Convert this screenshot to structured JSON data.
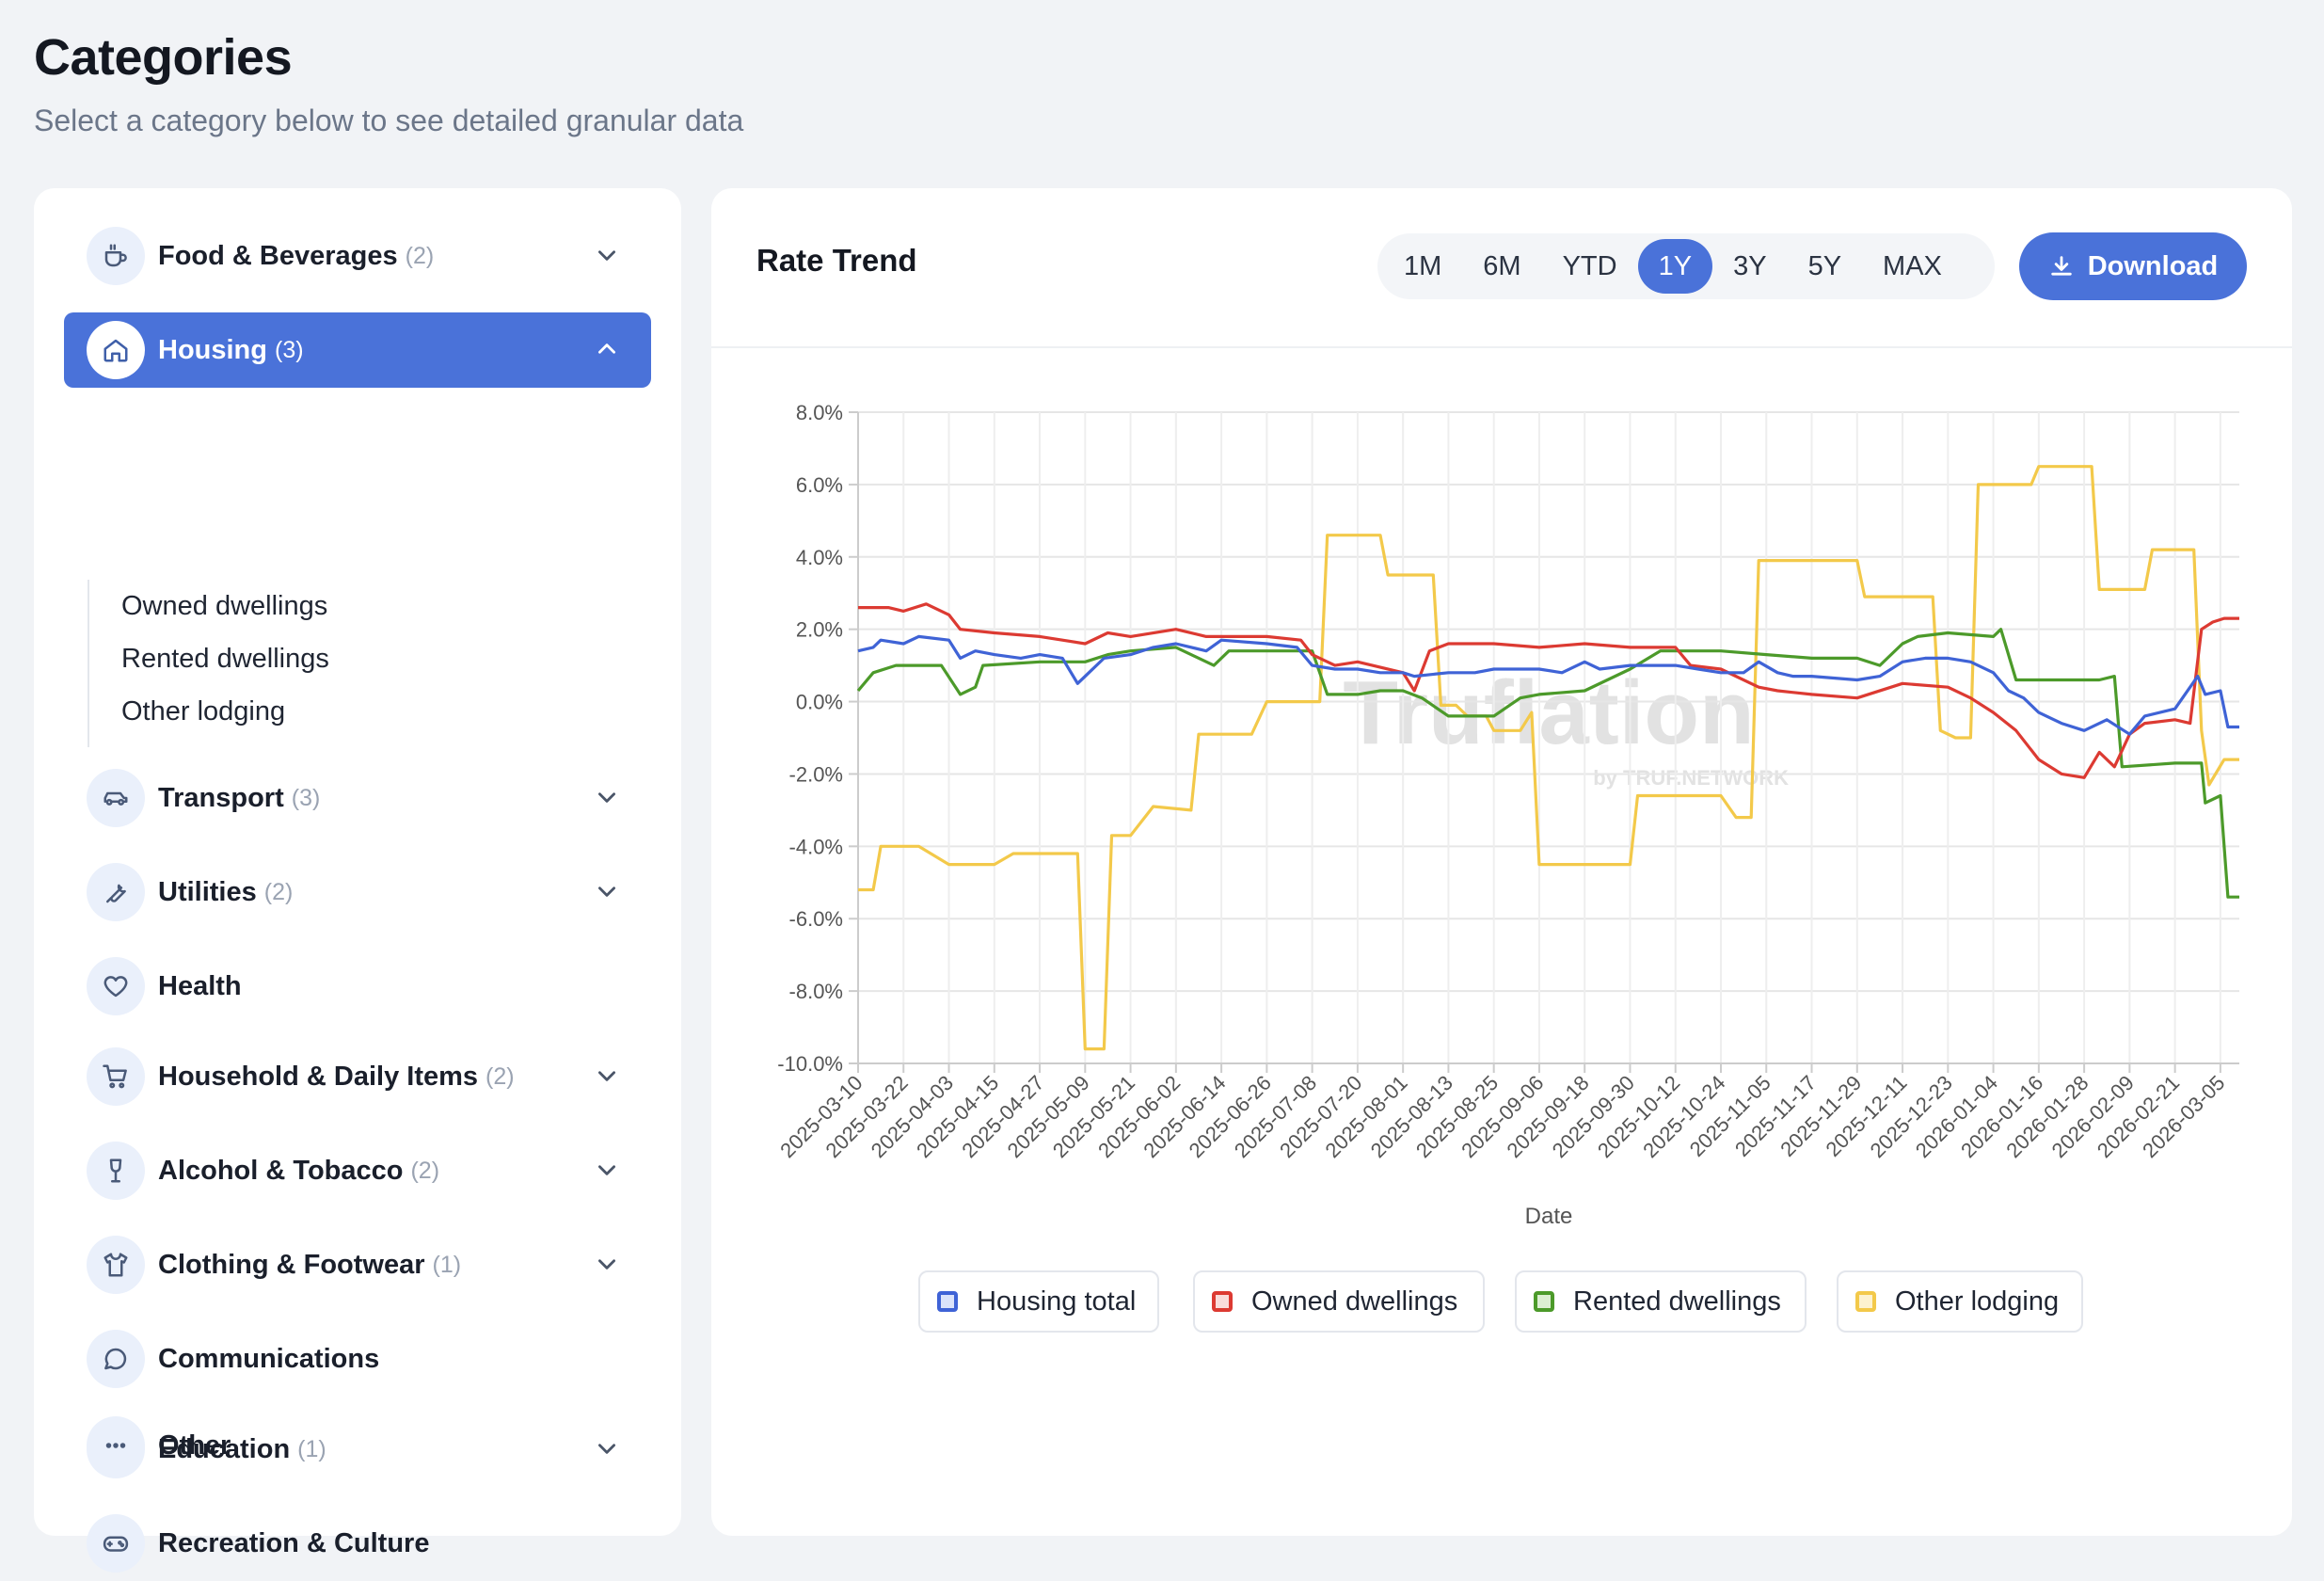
{
  "page": {
    "title": "Categories",
    "subtitle": "Select a category below to see detailed granular data"
  },
  "sidebar": {
    "categories": [
      {
        "name": "Food & Beverages",
        "count": "(2)",
        "icon": "cup-icon",
        "expanded": false
      },
      {
        "name": "Housing",
        "count": "(3)",
        "icon": "home-icon",
        "expanded": true
      },
      {
        "name": "Transport",
        "count": "(3)",
        "icon": "car-icon",
        "expanded": false
      },
      {
        "name": "Utilities",
        "count": "(2)",
        "icon": "wrench-icon",
        "expanded": false
      },
      {
        "name": "Health",
        "count": "",
        "icon": "heart-icon",
        "expanded": false
      },
      {
        "name": "Household & Daily Items",
        "count": "(2)",
        "icon": "cart-icon",
        "expanded": false
      },
      {
        "name": "Alcohol & Tobacco",
        "count": "(2)",
        "icon": "wine-icon",
        "expanded": false
      },
      {
        "name": "Clothing & Footwear",
        "count": "(1)",
        "icon": "shirt-icon",
        "expanded": false
      },
      {
        "name": "Communications",
        "count": "",
        "icon": "chat-icon",
        "expanded": false
      },
      {
        "name": "Education",
        "count": "(1)",
        "icon": "graduation-cap-icon",
        "expanded": false
      },
      {
        "name": "Recreation & Culture",
        "count": "",
        "icon": "gamepad-icon",
        "expanded": false
      },
      {
        "name": "Other",
        "count": "",
        "icon": "more-icon",
        "expanded": false
      }
    ],
    "housing_subcategories": [
      "Owned dwellings",
      "Rented dwellings",
      "Other lodging"
    ]
  },
  "panel": {
    "title": "Rate Trend",
    "ranges": [
      "1M",
      "6M",
      "YTD",
      "1Y",
      "3Y",
      "5Y",
      "MAX"
    ],
    "active_range": "1Y",
    "download_label": "Download"
  },
  "colors": {
    "accent": "#4a72d9",
    "housing_total": "#3f63d6",
    "owned": "#dc3a32",
    "rented": "#4c9a2a",
    "other_lodging": "#f3c94a"
  },
  "chart_data": {
    "type": "line",
    "xlabel": "Date",
    "ylabel": "",
    "ylim": [
      -10,
      8
    ],
    "yticks": [
      "8.0%",
      "6.0%",
      "4.0%",
      "2.0%",
      "0.0%",
      "-2.0%",
      "-4.0%",
      "-6.0%",
      "-8.0%",
      "-10.0%"
    ],
    "grid": true,
    "legend_position": "bottom",
    "watermark": "Truflation by TRUF.NETWORK",
    "x_start": "2025-03-10",
    "x_end": "2026-03-10",
    "x_ticks": [
      "2025-03-10",
      "2025-03-22",
      "2025-04-03",
      "2025-04-15",
      "2025-04-27",
      "2025-05-09",
      "2025-05-21",
      "2025-06-02",
      "2025-06-14",
      "2025-06-26",
      "2025-07-08",
      "2025-07-20",
      "2025-08-01",
      "2025-08-13",
      "2025-08-25",
      "2025-09-06",
      "2025-09-18",
      "2025-09-30",
      "2025-10-12",
      "2025-10-24",
      "2025-11-05",
      "2025-11-17",
      "2025-11-29",
      "2025-12-11",
      "2025-12-23",
      "2026-01-04",
      "2026-01-16",
      "2026-01-28",
      "2026-02-09",
      "2026-02-21",
      "2026-03-05"
    ],
    "series": [
      {
        "name": "Housing total",
        "points": [
          [
            "2025-03-10",
            1.4
          ],
          [
            "2025-03-14",
            1.5
          ],
          [
            "2025-03-16",
            1.7
          ],
          [
            "2025-03-22",
            1.6
          ],
          [
            "2025-03-26",
            1.8
          ],
          [
            "2025-04-03",
            1.7
          ],
          [
            "2025-04-06",
            1.2
          ],
          [
            "2025-04-10",
            1.4
          ],
          [
            "2025-04-15",
            1.3
          ],
          [
            "2025-04-22",
            1.2
          ],
          [
            "2025-04-27",
            1.3
          ],
          [
            "2025-05-03",
            1.2
          ],
          [
            "2025-05-07",
            0.5
          ],
          [
            "2025-05-10",
            0.8
          ],
          [
            "2025-05-14",
            1.2
          ],
          [
            "2025-05-21",
            1.3
          ],
          [
            "2025-05-27",
            1.5
          ],
          [
            "2025-06-02",
            1.6
          ],
          [
            "2025-06-10",
            1.4
          ],
          [
            "2025-06-14",
            1.7
          ],
          [
            "2025-06-26",
            1.6
          ],
          [
            "2025-07-04",
            1.5
          ],
          [
            "2025-07-08",
            1.0
          ],
          [
            "2025-07-14",
            0.9
          ],
          [
            "2025-07-20",
            0.9
          ],
          [
            "2025-07-26",
            0.8
          ],
          [
            "2025-08-01",
            0.8
          ],
          [
            "2025-08-04",
            0.7
          ],
          [
            "2025-08-13",
            0.8
          ],
          [
            "2025-08-20",
            0.8
          ],
          [
            "2025-08-25",
            0.9
          ],
          [
            "2025-09-06",
            0.9
          ],
          [
            "2025-09-12",
            0.8
          ],
          [
            "2025-09-18",
            1.1
          ],
          [
            "2025-09-22",
            0.9
          ],
          [
            "2025-09-30",
            1.0
          ],
          [
            "2025-10-12",
            1.0
          ],
          [
            "2025-10-18",
            0.9
          ],
          [
            "2025-10-24",
            0.8
          ],
          [
            "2025-10-30",
            0.8
          ],
          [
            "2025-11-03",
            1.1
          ],
          [
            "2025-11-08",
            0.8
          ],
          [
            "2025-11-12",
            0.7
          ],
          [
            "2025-11-17",
            0.7
          ],
          [
            "2025-11-29",
            0.6
          ],
          [
            "2025-12-05",
            0.7
          ],
          [
            "2025-12-11",
            1.1
          ],
          [
            "2025-12-17",
            1.2
          ],
          [
            "2025-12-23",
            1.2
          ],
          [
            "2025-12-29",
            1.1
          ],
          [
            "2026-01-04",
            0.8
          ],
          [
            "2026-01-08",
            0.3
          ],
          [
            "2026-01-12",
            0.1
          ],
          [
            "2026-01-16",
            -0.3
          ],
          [
            "2026-01-22",
            -0.6
          ],
          [
            "2026-01-28",
            -0.8
          ],
          [
            "2026-02-03",
            -0.5
          ],
          [
            "2026-02-09",
            -0.9
          ],
          [
            "2026-02-13",
            -0.4
          ],
          [
            "2026-02-21",
            -0.2
          ],
          [
            "2026-02-27",
            0.7
          ],
          [
            "2026-03-01",
            0.2
          ],
          [
            "2026-03-05",
            0.3
          ],
          [
            "2026-03-07",
            -0.7
          ],
          [
            "2026-03-10",
            -0.7
          ]
        ]
      },
      {
        "name": "Owned dwellings",
        "points": [
          [
            "2025-03-10",
            2.6
          ],
          [
            "2025-03-18",
            2.6
          ],
          [
            "2025-03-22",
            2.5
          ],
          [
            "2025-03-28",
            2.7
          ],
          [
            "2025-04-03",
            2.4
          ],
          [
            "2025-04-06",
            2.0
          ],
          [
            "2025-04-15",
            1.9
          ],
          [
            "2025-04-27",
            1.8
          ],
          [
            "2025-05-03",
            1.7
          ],
          [
            "2025-05-09",
            1.6
          ],
          [
            "2025-05-15",
            1.9
          ],
          [
            "2025-05-21",
            1.8
          ],
          [
            "2025-06-02",
            2.0
          ],
          [
            "2025-06-10",
            1.8
          ],
          [
            "2025-06-26",
            1.8
          ],
          [
            "2025-07-05",
            1.7
          ],
          [
            "2025-07-08",
            1.3
          ],
          [
            "2025-07-14",
            1.0
          ],
          [
            "2025-07-20",
            1.1
          ],
          [
            "2025-08-01",
            0.8
          ],
          [
            "2025-08-04",
            0.3
          ],
          [
            "2025-08-08",
            1.4
          ],
          [
            "2025-08-13",
            1.6
          ],
          [
            "2025-08-25",
            1.6
          ],
          [
            "2025-09-06",
            1.5
          ],
          [
            "2025-09-18",
            1.6
          ],
          [
            "2025-09-30",
            1.5
          ],
          [
            "2025-10-12",
            1.5
          ],
          [
            "2025-10-16",
            1.0
          ],
          [
            "2025-10-24",
            0.9
          ],
          [
            "2025-11-03",
            0.4
          ],
          [
            "2025-11-08",
            0.3
          ],
          [
            "2025-11-17",
            0.2
          ],
          [
            "2025-11-29",
            0.1
          ],
          [
            "2025-12-11",
            0.5
          ],
          [
            "2025-12-23",
            0.4
          ],
          [
            "2025-12-29",
            0.1
          ],
          [
            "2026-01-04",
            -0.3
          ],
          [
            "2026-01-10",
            -0.8
          ],
          [
            "2026-01-16",
            -1.6
          ],
          [
            "2026-01-22",
            -2.0
          ],
          [
            "2026-01-28",
            -2.1
          ],
          [
            "2026-02-01",
            -1.4
          ],
          [
            "2026-02-05",
            -1.8
          ],
          [
            "2026-02-09",
            -0.9
          ],
          [
            "2026-02-13",
            -0.6
          ],
          [
            "2026-02-21",
            -0.5
          ],
          [
            "2026-02-25",
            -0.6
          ],
          [
            "2026-02-28",
            2.0
          ],
          [
            "2026-03-03",
            2.2
          ],
          [
            "2026-03-06",
            2.3
          ],
          [
            "2026-03-10",
            2.3
          ]
        ]
      },
      {
        "name": "Rented dwellings",
        "points": [
          [
            "2025-03-10",
            0.3
          ],
          [
            "2025-03-14",
            0.8
          ],
          [
            "2025-03-20",
            1.0
          ],
          [
            "2025-03-26",
            1.0
          ],
          [
            "2025-04-01",
            1.0
          ],
          [
            "2025-04-06",
            0.2
          ],
          [
            "2025-04-10",
            0.4
          ],
          [
            "2025-04-12",
            1.0
          ],
          [
            "2025-04-27",
            1.1
          ],
          [
            "2025-05-09",
            1.1
          ],
          [
            "2025-05-15",
            1.3
          ],
          [
            "2025-05-21",
            1.4
          ],
          [
            "2025-06-02",
            1.5
          ],
          [
            "2025-06-12",
            1.0
          ],
          [
            "2025-06-16",
            1.4
          ],
          [
            "2025-06-26",
            1.4
          ],
          [
            "2025-07-08",
            1.4
          ],
          [
            "2025-07-12",
            0.2
          ],
          [
            "2025-07-20",
            0.2
          ],
          [
            "2025-07-26",
            0.3
          ],
          [
            "2025-08-01",
            0.3
          ],
          [
            "2025-08-06",
            0.1
          ],
          [
            "2025-08-13",
            -0.4
          ],
          [
            "2025-08-25",
            -0.4
          ],
          [
            "2025-09-01",
            0.1
          ],
          [
            "2025-09-06",
            0.2
          ],
          [
            "2025-09-18",
            0.3
          ],
          [
            "2025-09-30",
            0.9
          ],
          [
            "2025-10-08",
            1.4
          ],
          [
            "2025-10-24",
            1.4
          ],
          [
            "2025-11-05",
            1.3
          ],
          [
            "2025-11-17",
            1.2
          ],
          [
            "2025-11-29",
            1.2
          ],
          [
            "2025-12-05",
            1.0
          ],
          [
            "2025-12-11",
            1.6
          ],
          [
            "2025-12-15",
            1.8
          ],
          [
            "2025-12-23",
            1.9
          ],
          [
            "2026-01-04",
            1.8
          ],
          [
            "2026-01-06",
            2.0
          ],
          [
            "2026-01-10",
            0.6
          ],
          [
            "2026-01-22",
            0.6
          ],
          [
            "2026-02-01",
            0.6
          ],
          [
            "2026-02-05",
            0.7
          ],
          [
            "2026-02-07",
            -1.8
          ],
          [
            "2026-02-21",
            -1.7
          ],
          [
            "2026-02-28",
            -1.7
          ],
          [
            "2026-03-01",
            -2.8
          ],
          [
            "2026-03-05",
            -2.6
          ],
          [
            "2026-03-07",
            -5.4
          ],
          [
            "2026-03-10",
            -5.4
          ]
        ]
      },
      {
        "name": "Other lodging",
        "points": [
          [
            "2025-03-10",
            -5.2
          ],
          [
            "2025-03-14",
            -5.2
          ],
          [
            "2025-03-16",
            -4.0
          ],
          [
            "2025-03-26",
            -4.0
          ],
          [
            "2025-04-03",
            -4.5
          ],
          [
            "2025-04-15",
            -4.5
          ],
          [
            "2025-04-20",
            -4.2
          ],
          [
            "2025-05-07",
            -4.2
          ],
          [
            "2025-05-09",
            -9.6
          ],
          [
            "2025-05-14",
            -9.6
          ],
          [
            "2025-05-16",
            -3.7
          ],
          [
            "2025-05-21",
            -3.7
          ],
          [
            "2025-05-27",
            -2.9
          ],
          [
            "2025-06-06",
            -3.0
          ],
          [
            "2025-06-08",
            -0.9
          ],
          [
            "2025-06-22",
            -0.9
          ],
          [
            "2025-06-26",
            0.0
          ],
          [
            "2025-07-10",
            0.0
          ],
          [
            "2025-07-12",
            4.6
          ],
          [
            "2025-07-26",
            4.6
          ],
          [
            "2025-07-28",
            3.5
          ],
          [
            "2025-08-09",
            3.5
          ],
          [
            "2025-08-11",
            -0.1
          ],
          [
            "2025-08-15",
            -0.1
          ],
          [
            "2025-08-18",
            -0.4
          ],
          [
            "2025-08-23",
            -0.4
          ],
          [
            "2025-08-25",
            -0.8
          ],
          [
            "2025-09-01",
            -0.8
          ],
          [
            "2025-09-04",
            -0.3
          ],
          [
            "2025-09-06",
            -4.5
          ],
          [
            "2025-09-18",
            -4.5
          ],
          [
            "2025-09-30",
            -4.5
          ],
          [
            "2025-10-02",
            -2.6
          ],
          [
            "2025-10-24",
            -2.6
          ],
          [
            "2025-10-28",
            -3.2
          ],
          [
            "2025-11-01",
            -3.2
          ],
          [
            "2025-11-03",
            3.9
          ],
          [
            "2025-11-29",
            3.9
          ],
          [
            "2025-12-01",
            2.9
          ],
          [
            "2025-12-19",
            2.9
          ],
          [
            "2025-12-21",
            -0.8
          ],
          [
            "2025-12-25",
            -1.0
          ],
          [
            "2025-12-29",
            -1.0
          ],
          [
            "2025-12-31",
            6.0
          ],
          [
            "2026-01-14",
            6.0
          ],
          [
            "2026-01-16",
            6.5
          ],
          [
            "2026-01-30",
            6.5
          ],
          [
            "2026-02-01",
            3.1
          ],
          [
            "2026-02-13",
            3.1
          ],
          [
            "2026-02-15",
            4.2
          ],
          [
            "2026-02-26",
            4.2
          ],
          [
            "2026-02-28",
            -0.8
          ],
          [
            "2026-03-02",
            -2.3
          ],
          [
            "2026-03-06",
            -1.6
          ],
          [
            "2026-03-10",
            -1.6
          ]
        ]
      }
    ]
  }
}
